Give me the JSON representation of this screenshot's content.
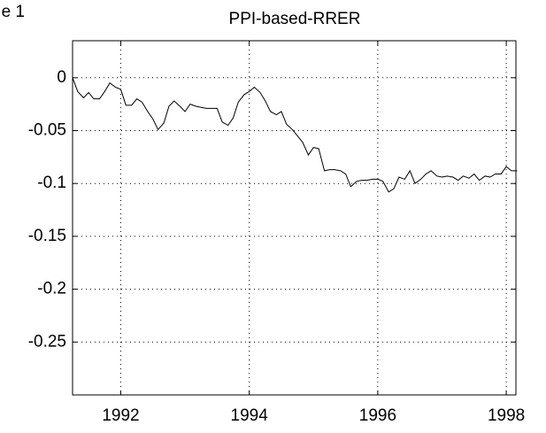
{
  "figure_label": "e 1",
  "chart_data": {
    "type": "line",
    "title": "PPI-based-RRER",
    "xlim": [
      1991.25,
      1998.15
    ],
    "xticks": [
      1992,
      1994,
      1996,
      1998
    ],
    "ylim": [
      -0.3,
      0.035
    ],
    "yticks": [
      0,
      -0.05,
      -0.1,
      -0.15,
      -0.2,
      -0.25
    ],
    "grid": true,
    "series": [
      {
        "color": "#000000",
        "x": [
          1991.25,
          1991.33,
          1991.42,
          1991.5,
          1991.58,
          1991.67,
          1991.75,
          1991.83,
          1991.92,
          1992.0,
          1992.08,
          1992.17,
          1992.25,
          1992.33,
          1992.42,
          1992.5,
          1992.58,
          1992.67,
          1992.75,
          1992.83,
          1992.92,
          1993.0,
          1993.08,
          1993.17,
          1993.25,
          1993.33,
          1993.42,
          1993.5,
          1993.58,
          1993.67,
          1993.75,
          1993.83,
          1993.92,
          1994.0,
          1994.08,
          1994.17,
          1994.25,
          1994.33,
          1994.42,
          1994.5,
          1994.58,
          1994.67,
          1994.75,
          1994.83,
          1994.92,
          1995.0,
          1995.08,
          1995.17,
          1995.25,
          1995.33,
          1995.42,
          1995.5,
          1995.58,
          1995.67,
          1995.75,
          1995.83,
          1995.92,
          1996.0,
          1996.08,
          1996.17,
          1996.25,
          1996.33,
          1996.42,
          1996.5,
          1996.58,
          1996.67,
          1996.75,
          1996.83,
          1996.92,
          1997.0,
          1997.08,
          1997.17,
          1997.25,
          1997.33,
          1997.42,
          1997.5,
          1997.58,
          1997.67,
          1997.75,
          1997.83,
          1997.92,
          1998.0,
          1998.08,
          1998.17
        ],
        "values": [
          0,
          -0.013,
          -0.019,
          -0.014,
          -0.02,
          -0.02,
          -0.013,
          -0.005,
          -0.009,
          -0.011,
          -0.026,
          -0.026,
          -0.02,
          -0.023,
          -0.032,
          -0.039,
          -0.049,
          -0.043,
          -0.027,
          -0.022,
          -0.027,
          -0.032,
          -0.025,
          -0.027,
          -0.028,
          -0.029,
          -0.029,
          -0.029,
          -0.042,
          -0.045,
          -0.038,
          -0.023,
          -0.016,
          -0.013,
          -0.009,
          -0.014,
          -0.022,
          -0.032,
          -0.035,
          -0.032,
          -0.044,
          -0.049,
          -0.055,
          -0.061,
          -0.073,
          -0.066,
          -0.067,
          -0.088,
          -0.087,
          -0.087,
          -0.088,
          -0.091,
          -0.103,
          -0.098,
          -0.097,
          -0.097,
          -0.096,
          -0.096,
          -0.098,
          -0.108,
          -0.105,
          -0.094,
          -0.096,
          -0.088,
          -0.1,
          -0.096,
          -0.091,
          -0.088,
          -0.093,
          -0.094,
          -0.093,
          -0.094,
          -0.097,
          -0.093,
          -0.095,
          -0.091,
          -0.097,
          -0.093,
          -0.094,
          -0.091,
          -0.091,
          -0.084,
          -0.088,
          -0.088
        ]
      }
    ]
  }
}
